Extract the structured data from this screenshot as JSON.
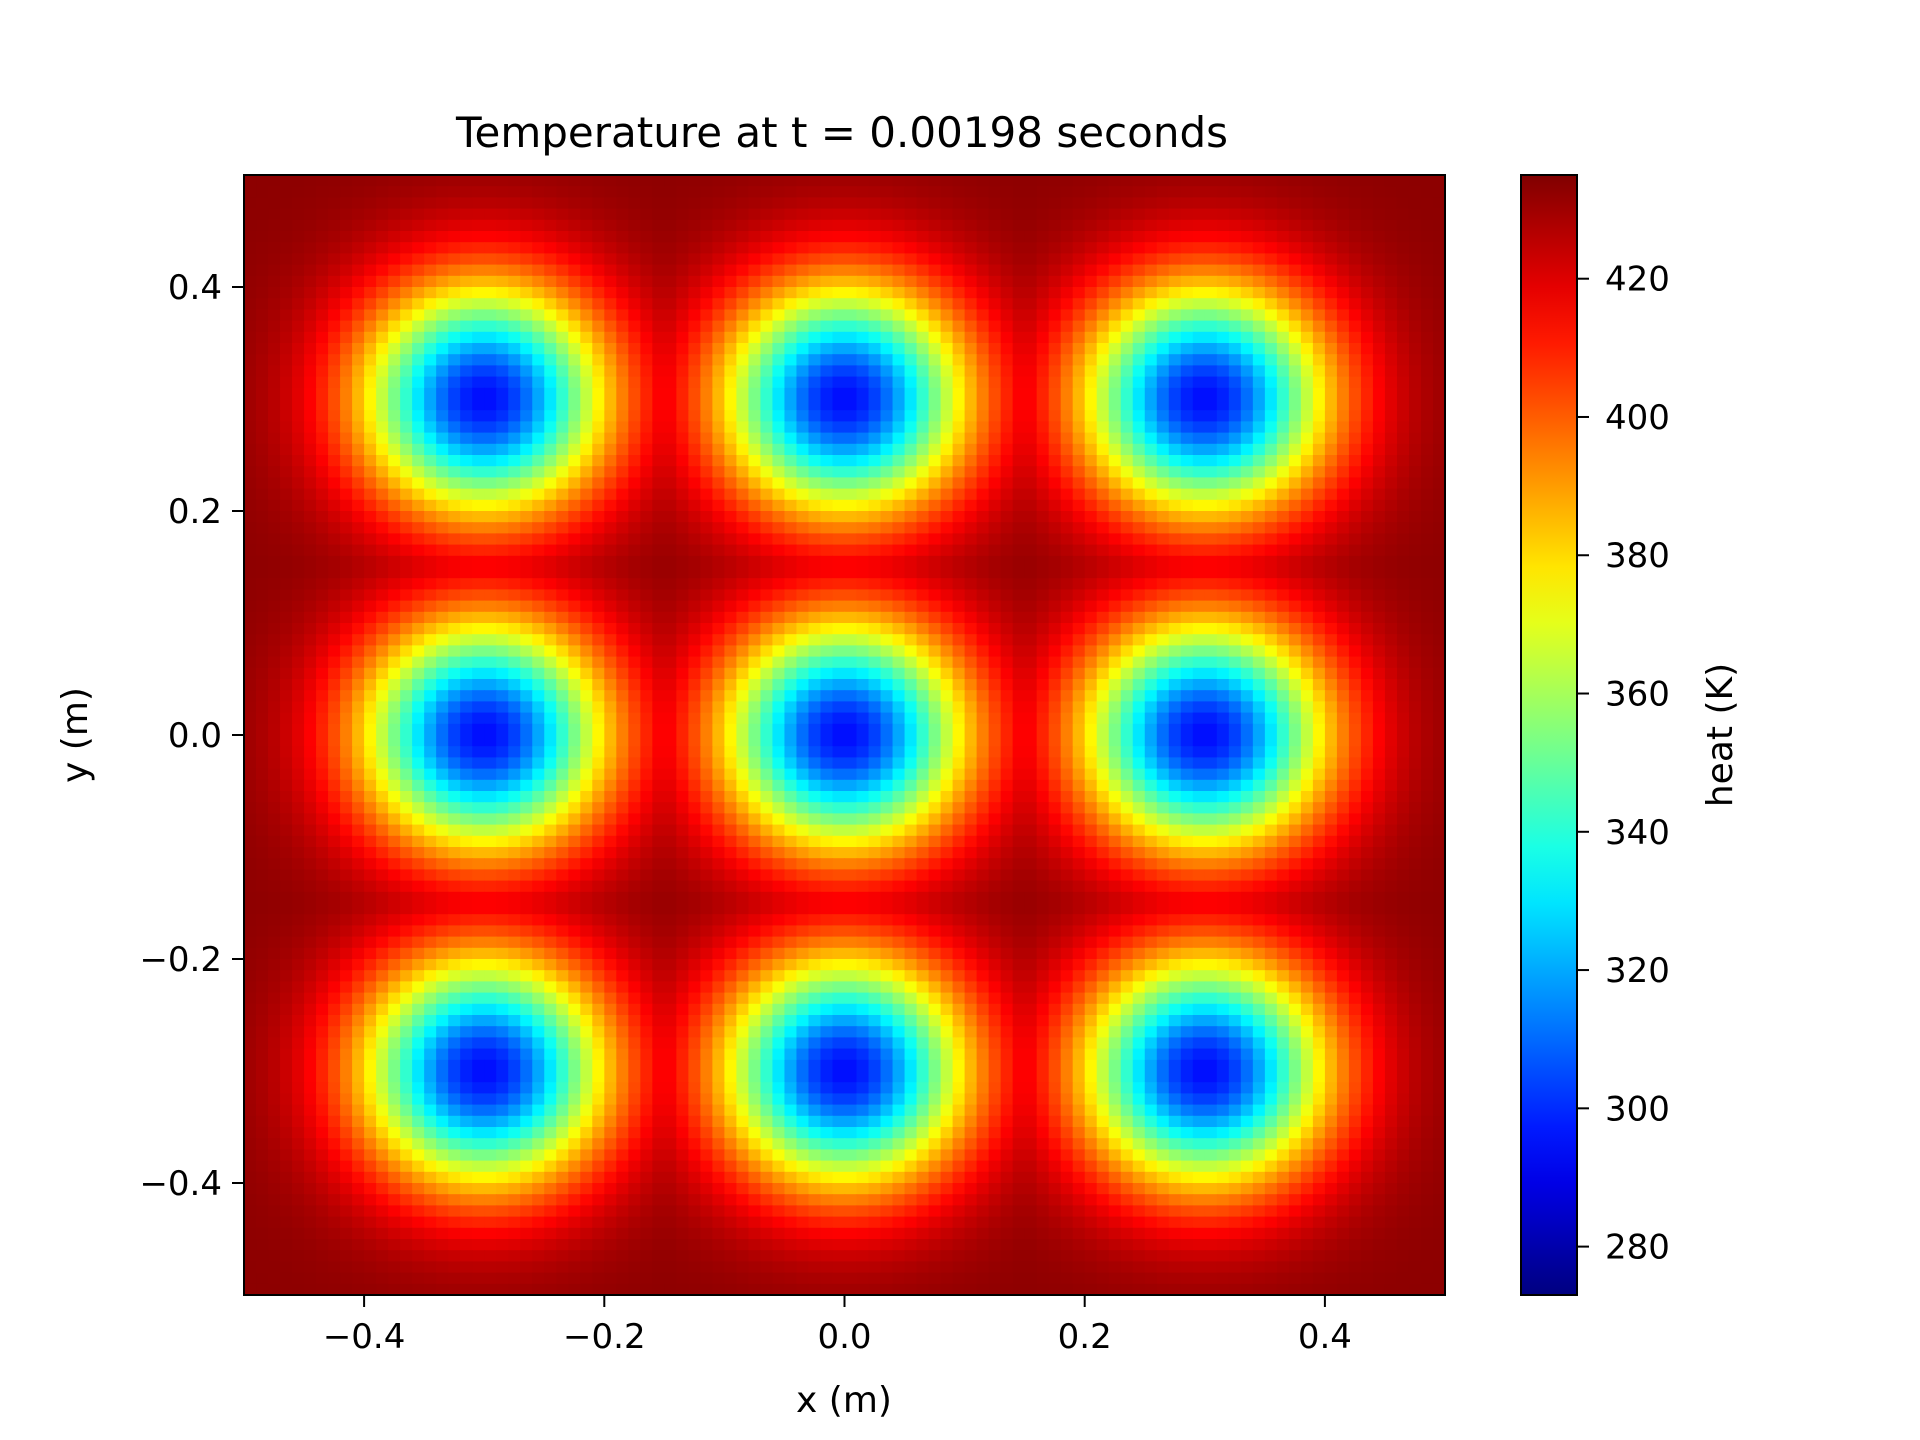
{
  "chart_data": {
    "type": "heatmap",
    "title": "Temperature at t = 0.00198 seconds",
    "xlabel": "x (m)",
    "ylabel": "y (m)",
    "xlim": [
      -0.5,
      0.5
    ],
    "ylim": [
      -0.5,
      0.5
    ],
    "x_ticks": [
      -0.4,
      -0.2,
      0.0,
      0.2,
      0.4
    ],
    "x_tick_labels": [
      "−0.4",
      "−0.2",
      "0.0",
      "0.2",
      "0.4"
    ],
    "y_ticks": [
      -0.4,
      -0.2,
      0.0,
      0.2,
      0.4
    ],
    "y_tick_labels": [
      "−0.4",
      "−0.2",
      "0.0",
      "0.2",
      "0.4"
    ],
    "grid": false,
    "colormap": "jet",
    "grid_resolution": 100,
    "colorbar": {
      "label": "heat (K)",
      "vmin": 273,
      "vmax": 435,
      "ticks": [
        280,
        300,
        320,
        340,
        360,
        380,
        400,
        420
      ],
      "tick_labels": [
        "280",
        "300",
        "320",
        "340",
        "360",
        "380",
        "400",
        "420"
      ]
    },
    "field": {
      "description_of_pattern": "3x3 array of cool circular spots on a hot background",
      "background_value": 433,
      "spot_min_value": 295,
      "spot_centers_x": [
        -0.3,
        0.0,
        0.3
      ],
      "spot_centers_y": [
        -0.3,
        0.0,
        0.3
      ],
      "spot_radius_m": 0.1
    }
  }
}
